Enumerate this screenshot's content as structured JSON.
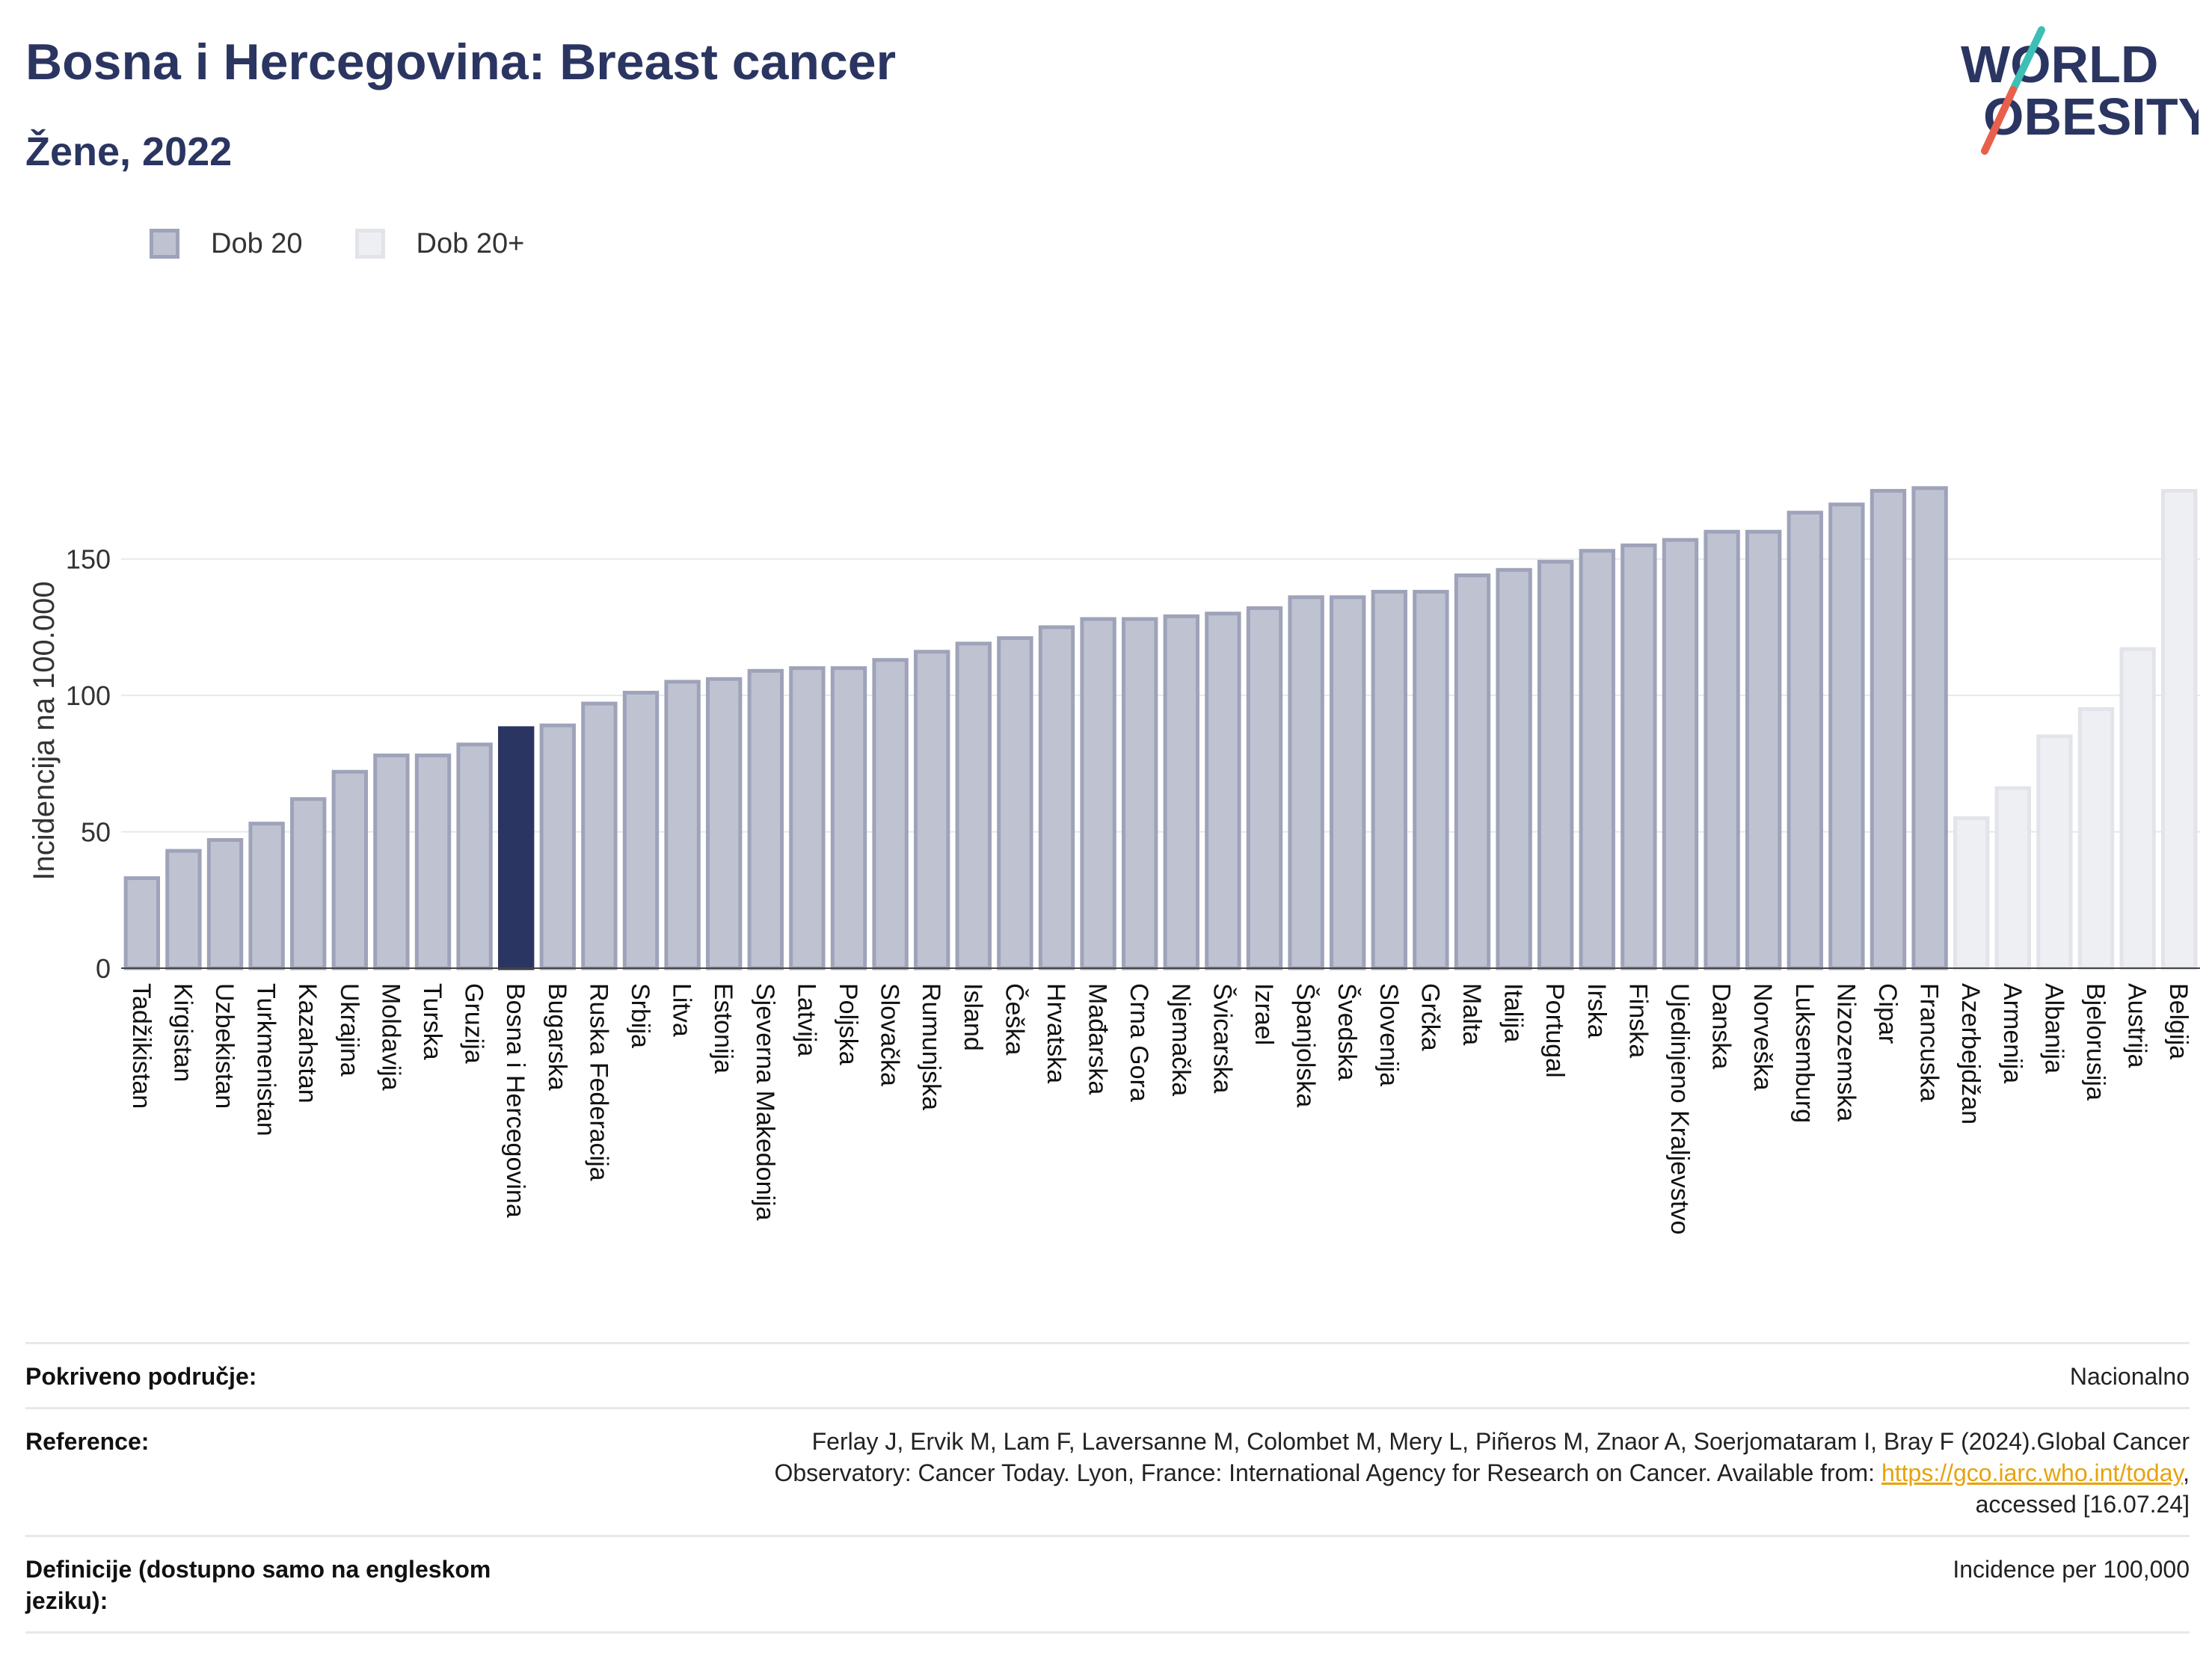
{
  "header": {
    "title": "Bosna i Hercegovina: Breast cancer",
    "subtitle": "Žene, 2022"
  },
  "logo": {
    "line1": "WORLD",
    "line2": "OBESITY",
    "icon": "world-obesity-logo"
  },
  "colors": {
    "primary": "#2b3561",
    "bar_fill": "#bfc3d1",
    "bar_stroke": "#9ea3b9",
    "bar_light_fill": "#eeeff3",
    "bar_light_stroke": "#e2e4ea",
    "grid": "#e6e8ee",
    "link": "#e8a20c"
  },
  "legend": [
    {
      "label": "Dob 20"
    },
    {
      "label": "Dob 20+"
    }
  ],
  "chart_data": {
    "type": "bar",
    "ylabel": "Incidencija na 100.000",
    "ylim": [
      0,
      185
    ],
    "yticks": [
      0,
      50,
      100,
      150
    ],
    "grid": true,
    "legend_position": "top-left",
    "highlight": "Bosna i Hercegovina",
    "series": [
      {
        "name": "Dob 20",
        "categories": [
          "Tadžikistan",
          "Kirgistan",
          "Uzbekistan",
          "Turkmenistan",
          "Kazahstan",
          "Ukrajina",
          "Moldavija",
          "Turska",
          "Gruzija",
          "Bosna i Hercegovina",
          "Bugarska",
          "Ruska Federacija",
          "Srbija",
          "Litva",
          "Estonija",
          "Sjeverna Makedonija",
          "Latvija",
          "Poljska",
          "Slovačka",
          "Rumunjska",
          "Island",
          "Češka",
          "Hrvatska",
          "Mađarska",
          "Crna Gora",
          "Njemačka",
          "Švicarska",
          "Izrael",
          "Španjolska",
          "Švedska",
          "Slovenija",
          "Grčka",
          "Malta",
          "Italija",
          "Portugal",
          "Irska",
          "Finska",
          "Ujedinjeno Kraljevstvo",
          "Danska",
          "Norveška",
          "Luksemburg",
          "Nizozemska",
          "Cipar",
          "Francuska"
        ],
        "values": [
          33,
          43,
          47,
          53,
          62,
          72,
          78,
          78,
          82,
          88,
          89,
          97,
          101,
          105,
          106,
          109,
          110,
          110,
          113,
          116,
          119,
          121,
          125,
          128,
          128,
          129,
          130,
          132,
          136,
          136,
          138,
          138,
          144,
          146,
          149,
          153,
          155,
          157,
          160,
          160,
          167,
          170,
          175,
          176
        ]
      },
      {
        "name": "Dob 20+",
        "categories": [
          "Azerbejdžan",
          "Armenija",
          "Albanija",
          "Bjelorusija",
          "Austrija",
          "Belgija"
        ],
        "values": [
          55,
          66,
          85,
          95,
          117,
          175
        ]
      }
    ]
  },
  "footer": {
    "rows": [
      {
        "label": "Pokriveno područje:",
        "value": "Nacionalno"
      },
      {
        "label": "Reference:",
        "value_line1": "Ferlay J, Ervik M, Lam F, Laversanne M, Colombet M, Mery L, Piñeros M, Znaor A, Soerjomataram I, Bray F (2024).Global Cancer",
        "value_line2_pre": "Observatory: Cancer Today. Lyon, France: International Agency for Research on Cancer. Available from: ",
        "link": "https://gco.iarc.who.int/today",
        "value_line2_post": ",",
        "value_line3": "accessed [16.07.24]"
      },
      {
        "label": "Definicije (dostupno samo na engleskom jeziku):",
        "value": "Incidence per 100,000"
      }
    ]
  }
}
